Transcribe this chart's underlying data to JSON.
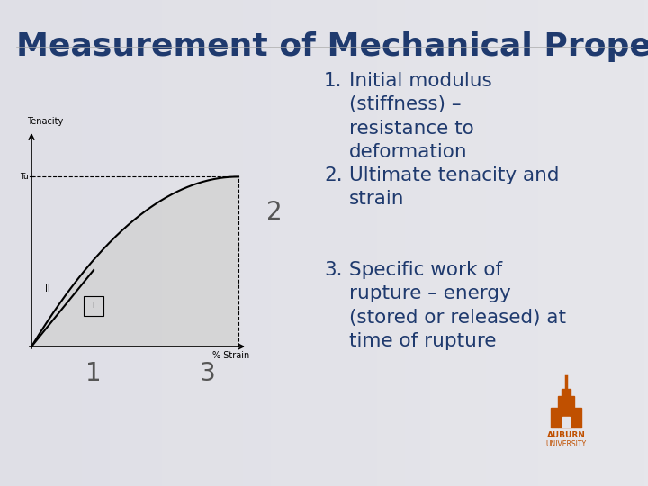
{
  "title": "Measurement of Mechanical Properties",
  "title_color": "#1F3A6E",
  "title_fontsize": 26,
  "background_top": "#e8e8ec",
  "background_bottom": "#c8c8d0",
  "list_items": [
    "Initial modulus\n(stiffness) –\nresistance to\ndeformation",
    "Ultimate tenacity and\nstrain",
    "Specific work of\nrupture – energy\n(stored or released) at\ntime of rupture"
  ],
  "list_color": "#1F3A6E",
  "list_fontsize": 15.5,
  "diagram_label_color": "#1F3A6E",
  "number_color": "#555555",
  "number_fontsize": 20,
  "auburn_color": "#C05000"
}
